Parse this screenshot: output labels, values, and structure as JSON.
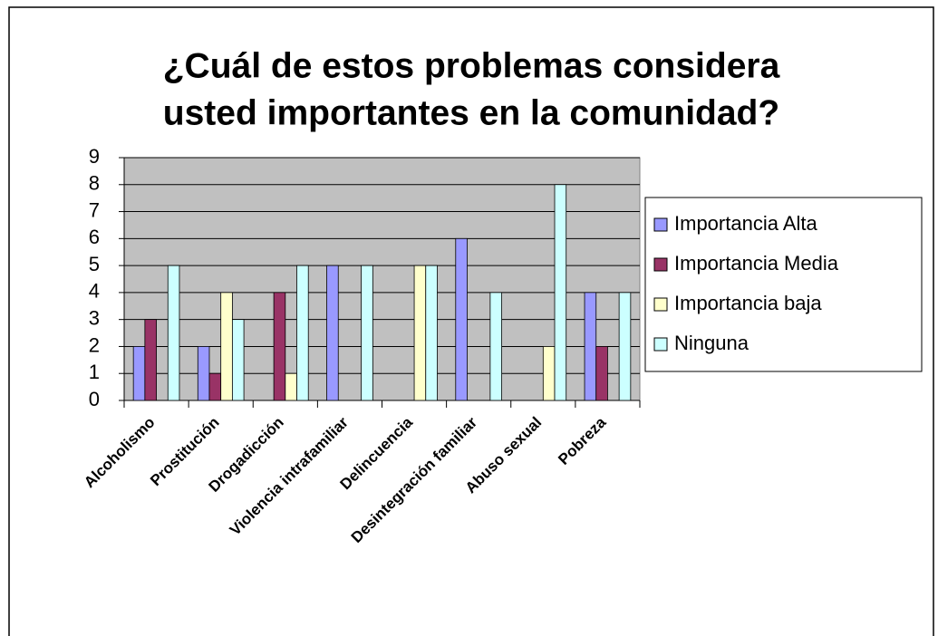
{
  "chart_data": {
    "type": "bar",
    "title": [
      "¿Cuál de estos problemas considera",
      "usted importantes en la comunidad?"
    ],
    "categories": [
      "Alcoholismo",
      "Prostitución",
      "Drogadicción",
      "Violencia intrafamiliar",
      "Delincuencia",
      "Desintegración familiar",
      "Abuso sexual",
      "Pobreza"
    ],
    "series": [
      {
        "name": "Importancia Alta",
        "color": "#9999ff",
        "values": [
          2,
          2,
          0,
          5,
          0,
          6,
          0,
          4
        ]
      },
      {
        "name": "Importancia Media",
        "color": "#993366",
        "values": [
          3,
          1,
          4,
          0,
          0,
          0,
          0,
          2
        ]
      },
      {
        "name": "Importancia baja",
        "color": "#ffffcc",
        "values": [
          0,
          4,
          1,
          0,
          5,
          0,
          2,
          0
        ]
      },
      {
        "name": "Ninguna",
        "color": "#ccffff",
        "values": [
          5,
          3,
          5,
          5,
          5,
          4,
          8,
          4
        ]
      }
    ],
    "ylim": [
      0,
      9
    ],
    "yticks": [
      0,
      1,
      2,
      3,
      4,
      5,
      6,
      7,
      8,
      9
    ],
    "grid": true,
    "legend": "right"
  }
}
